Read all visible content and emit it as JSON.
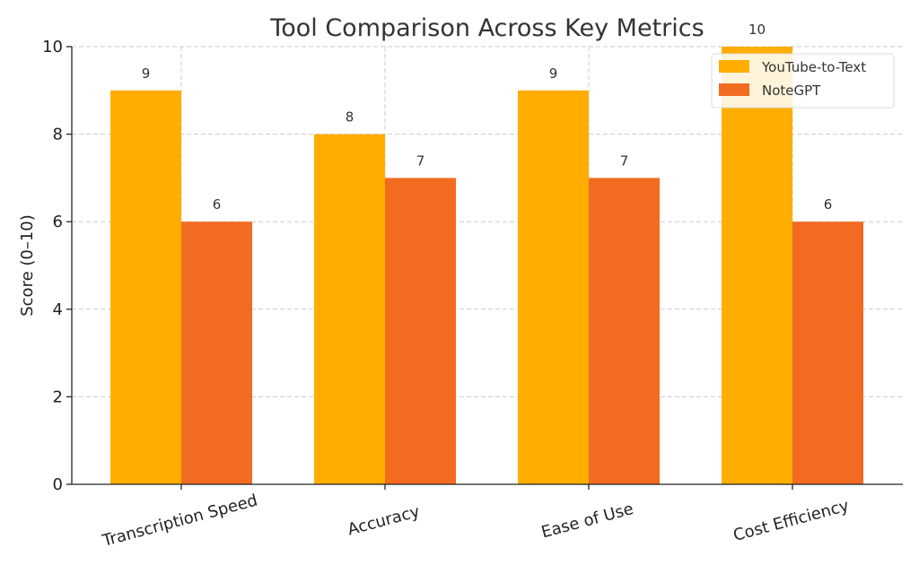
{
  "chart_data": {
    "type": "bar",
    "title": "Tool Comparison Across Key Metrics",
    "xlabel": "",
    "ylabel": "Score (0–10)",
    "categories": [
      "Transcription Speed",
      "Accuracy",
      "Ease of Use",
      "Cost Efficiency"
    ],
    "series": [
      {
        "name": "YouTube-to-Text",
        "values": [
          9,
          8,
          9,
          10
        ],
        "color": "#FFAE00"
      },
      {
        "name": "NoteGPT",
        "values": [
          6,
          7,
          7,
          6
        ],
        "color": "#F36B21"
      }
    ],
    "ylim": [
      0,
      10
    ],
    "yticks": [
      0,
      2,
      4,
      6,
      8,
      10
    ],
    "grid": true,
    "legend_position": "top-right"
  }
}
